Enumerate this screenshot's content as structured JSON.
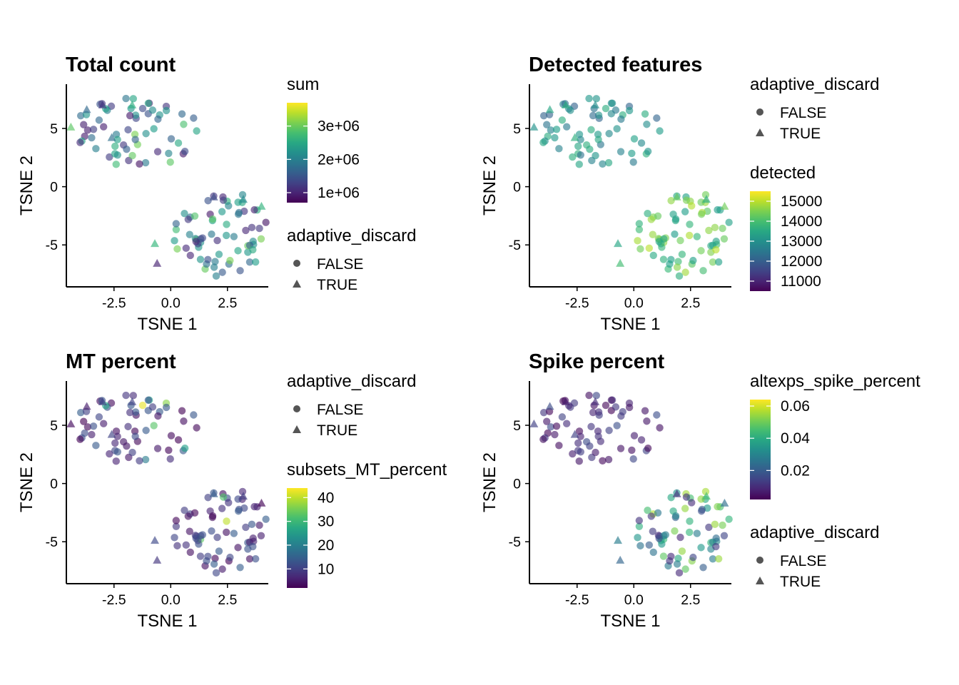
{
  "colors": {
    "viridis": [
      "#440154",
      "#482878",
      "#3E4A89",
      "#31688E",
      "#26828E",
      "#1F9E89",
      "#35B779",
      "#6DCD59",
      "#B4DE2C",
      "#FDE725"
    ],
    "shape_key": "#555555",
    "axis": "#000000"
  },
  "shape_legend": {
    "title": "adaptive_discard",
    "items": [
      {
        "label": "FALSE",
        "shape": "circle"
      },
      {
        "label": "TRUE",
        "shape": "triangle"
      }
    ]
  },
  "chart_data": [
    {
      "type": "scatter",
      "title": "Total count",
      "xlabel": "TSNE 1",
      "ylabel": "TSNE 2",
      "xlim": [
        -4.6,
        4.3
      ],
      "ylim": [
        -8.6,
        8.8
      ],
      "x_ticks": [
        {
          "v": -2.5,
          "label": "-2.5"
        },
        {
          "v": 0,
          "label": "0.0"
        },
        {
          "v": 2.5,
          "label": "2.5"
        }
      ],
      "y_ticks": [
        {
          "v": -5,
          "label": "-5"
        },
        {
          "v": 0,
          "label": "0"
        },
        {
          "v": 5,
          "label": "5"
        }
      ],
      "color_var": "sum",
      "color_legend": {
        "title": "sum",
        "range": [
          700000,
          3700000
        ],
        "ticks": [
          {
            "v": 1000000,
            "label": "1e+06"
          },
          {
            "v": 2000000,
            "label": "2e+06"
          },
          {
            "v": 3000000,
            "label": "3e+06"
          }
        ]
      },
      "legend_order": [
        "color",
        "shape"
      ],
      "color_seed": 11
    },
    {
      "type": "scatter",
      "title": "Detected features",
      "xlabel": "TSNE 1",
      "ylabel": "TSNE 2",
      "xlim": [
        -4.6,
        4.3
      ],
      "ylim": [
        -8.6,
        8.8
      ],
      "x_ticks": [
        {
          "v": -2.5,
          "label": "-2.5"
        },
        {
          "v": 0,
          "label": "0.0"
        },
        {
          "v": 2.5,
          "label": "2.5"
        }
      ],
      "y_ticks": [
        {
          "v": -5,
          "label": "-5"
        },
        {
          "v": 0,
          "label": "0"
        },
        {
          "v": 5,
          "label": "5"
        }
      ],
      "color_var": "detected",
      "color_legend": {
        "title": "detected",
        "range": [
          10500,
          15500
        ],
        "ticks": [
          {
            "v": 11000,
            "label": "11000"
          },
          {
            "v": 12000,
            "label": "12000"
          },
          {
            "v": 13000,
            "label": "13000"
          },
          {
            "v": 14000,
            "label": "14000"
          },
          {
            "v": 15000,
            "label": "15000"
          }
        ]
      },
      "legend_order": [
        "shape",
        "color"
      ],
      "color_seed": 23
    },
    {
      "type": "scatter",
      "title": "MT percent",
      "xlabel": "TSNE 1",
      "ylabel": "TSNE 2",
      "xlim": [
        -4.6,
        4.3
      ],
      "ylim": [
        -8.6,
        8.8
      ],
      "x_ticks": [
        {
          "v": -2.5,
          "label": "-2.5"
        },
        {
          "v": 0,
          "label": "0.0"
        },
        {
          "v": 2.5,
          "label": "2.5"
        }
      ],
      "y_ticks": [
        {
          "v": -5,
          "label": "-5"
        },
        {
          "v": 0,
          "label": "0"
        },
        {
          "v": 5,
          "label": "5"
        }
      ],
      "color_var": "subsets_MT_percent",
      "color_legend": {
        "title": "subsets_MT_percent",
        "range": [
          2,
          44
        ],
        "ticks": [
          {
            "v": 10,
            "label": "10"
          },
          {
            "v": 20,
            "label": "20"
          },
          {
            "v": 30,
            "label": "30"
          },
          {
            "v": 40,
            "label": "40"
          }
        ]
      },
      "legend_order": [
        "shape",
        "color"
      ],
      "color_seed": 37
    },
    {
      "type": "scatter",
      "title": "Spike percent",
      "xlabel": "TSNE 1",
      "ylabel": "TSNE 2",
      "xlim": [
        -4.6,
        4.3
      ],
      "ylim": [
        -8.6,
        8.8
      ],
      "x_ticks": [
        {
          "v": -2.5,
          "label": "-2.5"
        },
        {
          "v": 0,
          "label": "0.0"
        },
        {
          "v": 2.5,
          "label": "2.5"
        }
      ],
      "y_ticks": [
        {
          "v": -5,
          "label": "-5"
        },
        {
          "v": 0,
          "label": "0"
        },
        {
          "v": 5,
          "label": "5"
        }
      ],
      "color_var": "altexps_spike_percent",
      "color_legend": {
        "title": "altexps_spike_percent",
        "range": [
          0.002,
          0.064
        ],
        "ticks": [
          {
            "v": 0.02,
            "label": "0.02"
          },
          {
            "v": 0.04,
            "label": "0.04"
          },
          {
            "v": 0.06,
            "label": "0.06"
          }
        ]
      },
      "legend_order": [
        "color",
        "shape"
      ],
      "color_seed": 53
    }
  ]
}
